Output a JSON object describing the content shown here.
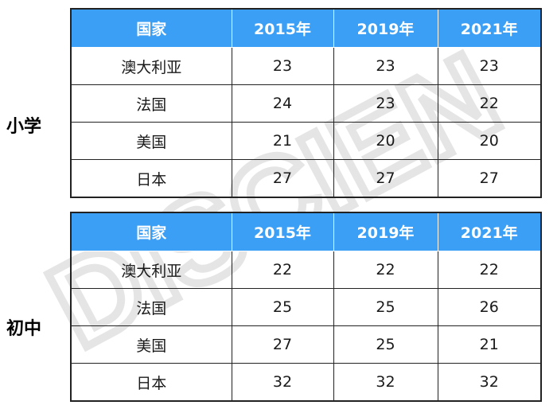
{
  "sections": [
    {
      "label": "小学",
      "headers": [
        "国家",
        "2015年",
        "2019年",
        "2021年"
      ],
      "rows": [
        {
          "country": "澳大利亚",
          "y2015": "23",
          "y2019": "23",
          "y2021": "23"
        },
        {
          "country": "法国",
          "y2015": "24",
          "y2019": "23",
          "y2021": "22"
        },
        {
          "country": "美国",
          "y2015": "21",
          "y2019": "20",
          "y2021": "20"
        },
        {
          "country": "日本",
          "y2015": "27",
          "y2019": "27",
          "y2021": "27"
        }
      ]
    },
    {
      "label": "初中",
      "headers": [
        "国家",
        "2015年",
        "2019年",
        "2021年"
      ],
      "rows": [
        {
          "country": "澳大利亚",
          "y2015": "22",
          "y2019": "22",
          "y2021": "22"
        },
        {
          "country": "法国",
          "y2015": "25",
          "y2019": "25",
          "y2021": "26"
        },
        {
          "country": "美国",
          "y2015": "27",
          "y2019": "25",
          "y2021": "21"
        },
        {
          "country": "日本",
          "y2015": "32",
          "y2019": "32",
          "y2021": "32"
        }
      ]
    }
  ],
  "watermark": {
    "text": "DISCIEN",
    "color": "#c8c8c8"
  },
  "colors": {
    "header_bg": "#3a9ff5",
    "header_text": "#ffffff",
    "border": "#222222"
  }
}
